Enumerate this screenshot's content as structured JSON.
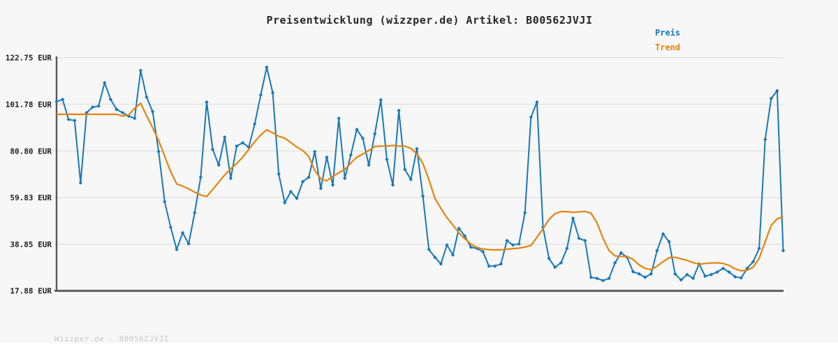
{
  "header": {
    "title": "Preisentwicklung (wizzper.de) Artikel: B00562JVJI"
  },
  "legend": {
    "items": [
      {
        "label": "Preis",
        "color": "#1878b8"
      },
      {
        "label": "Trend",
        "color": "#e5830e"
      }
    ]
  },
  "footer": {
    "text": "Wizzper.de - B00562JVJI"
  },
  "chart_data": {
    "type": "line",
    "title": "Preisentwicklung (wizzper.de) Artikel: B00562JVJI",
    "xlabel": "",
    "ylabel": "",
    "x": "time (no axis labels shown in image)",
    "xticks": [],
    "ylim": [
      17.88,
      122.75
    ],
    "grid": true,
    "background": "#f7f7f7",
    "axis_color": "#595959",
    "grid_color": "#e4e4e4",
    "legend_position": "top-right",
    "yticks": [
      {
        "value": 122.75,
        "label": "122.75 EUR"
      },
      {
        "value": 101.78,
        "label": "101.78 EUR"
      },
      {
        "value": 80.8,
        "label": "80.80 EUR"
      },
      {
        "value": 59.83,
        "label": "59.83 EUR"
      },
      {
        "value": 38.85,
        "label": "38.85 EUR"
      },
      {
        "value": 17.88,
        "label": "17.88 EUR"
      }
    ],
    "series": [
      {
        "name": "Preis",
        "color": "#1878b8",
        "marker": "diamond",
        "line_width": 2,
        "unit": "EUR",
        "values": [
          103,
          104,
          95,
          94.5,
          66.5,
          98,
          100.5,
          101,
          111.5,
          104,
          99.5,
          98,
          96.5,
          95.5,
          117,
          105,
          98.5,
          80.5,
          58,
          46.5,
          36.5,
          44,
          39,
          53,
          69,
          102.8,
          81.5,
          74.5,
          87,
          68.5,
          83,
          84.5,
          82.5,
          93,
          106,
          118.5,
          107,
          70.5,
          57.5,
          62.5,
          59.5,
          67,
          69,
          80.5,
          64,
          78,
          65.5,
          95.5,
          68.5,
          79,
          90.5,
          86.5,
          74.5,
          88.5,
          103.8,
          77,
          65.5,
          99,
          72.5,
          68,
          81.8,
          60.5,
          36.5,
          33,
          30,
          38.5,
          34,
          46,
          42.5,
          37.5,
          37,
          35.5,
          29,
          29,
          30,
          40.5,
          38.5,
          39,
          53,
          96,
          102.8,
          46.5,
          32.5,
          28.5,
          30.5,
          37,
          50.5,
          41.5,
          40.5,
          24,
          23.5,
          22.5,
          23.5,
          30.5,
          35,
          33,
          26.5,
          25.5,
          24,
          25.5,
          36,
          43.5,
          40,
          25.5,
          22.8,
          25.2,
          23.5,
          30,
          24.5,
          25.2,
          26.3,
          28,
          26.3,
          24.2,
          23.7,
          28,
          31,
          37,
          86,
          104.4,
          107.9,
          36
        ]
      },
      {
        "name": "Trend",
        "color": "#e5830e",
        "marker": "none",
        "line_width": 2.2,
        "unit": "EUR",
        "values": [
          97.3,
          97.3,
          97.3,
          97.3,
          97.3,
          97.3,
          97.3,
          97.3,
          97.3,
          97.3,
          97.3,
          96.5,
          97,
          100,
          102.3,
          96.6,
          91.3,
          85.5,
          78.5,
          71.5,
          66,
          65,
          63.8,
          62.3,
          61,
          60.3,
          63.5,
          66.8,
          70,
          72.8,
          75.2,
          78,
          81.5,
          85,
          88,
          90.3,
          89,
          87.4,
          86.6,
          84.6,
          82.6,
          81,
          78.3,
          72,
          68.3,
          67.4,
          69.4,
          71,
          72.5,
          75.4,
          78,
          79.4,
          81,
          82.8,
          83,
          83,
          83.3,
          83,
          83,
          82,
          79.5,
          75.2,
          68,
          59.5,
          55,
          50.8,
          47.5,
          44,
          41.3,
          38.9,
          37.4,
          36.7,
          36.4,
          36.3,
          36.3,
          36.6,
          36.9,
          37.1,
          37.6,
          38.3,
          42,
          45.8,
          50,
          52.6,
          53.6,
          53.5,
          53.2,
          53.4,
          53.6,
          52.8,
          48.5,
          41.5,
          36,
          33.6,
          33.3,
          33.4,
          32,
          29.6,
          28,
          27.4,
          29,
          31,
          32.8,
          33,
          32.3,
          31.6,
          30.6,
          29.8,
          30.2,
          30.4,
          30.5,
          30.2,
          29.3,
          27.8,
          26.9,
          27.2,
          28.5,
          32.5,
          40,
          47.3,
          50.3,
          51.2
        ]
      }
    ]
  }
}
